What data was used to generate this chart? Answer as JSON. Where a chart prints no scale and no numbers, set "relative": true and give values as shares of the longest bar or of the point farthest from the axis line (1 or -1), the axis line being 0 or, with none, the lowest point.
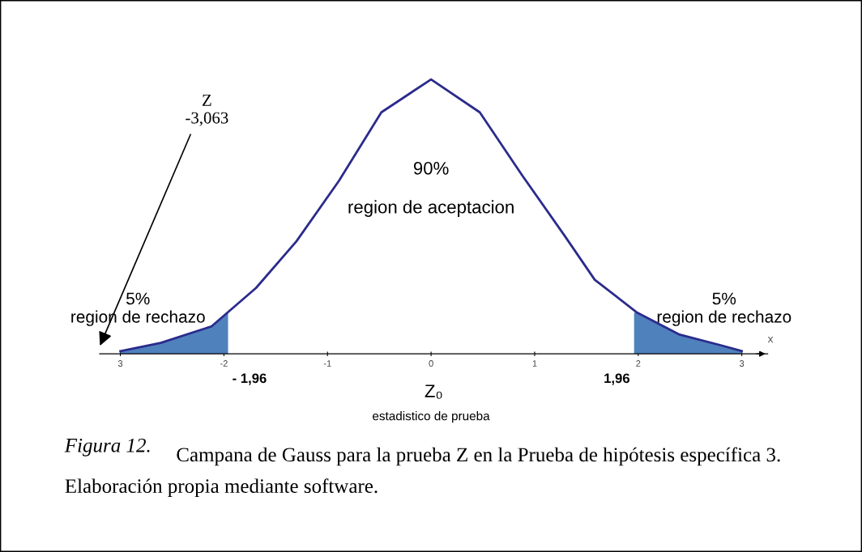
{
  "chart_data": {
    "type": "line",
    "relative": true,
    "x": [
      -3,
      -2.61,
      -2.12,
      -1.69,
      -1.3,
      -0.89,
      -0.48,
      0,
      0.47,
      0.88,
      1.29,
      1.58,
      1.99,
      2.4,
      2.81,
      3
    ],
    "series": [
      {
        "color": "#2b2b8c",
        "values": [
          0.01,
          0.04,
          0.1,
          0.24,
          0.41,
          0.63,
          0.88,
          1,
          0.88,
          0.65,
          0.43,
          0.27,
          0.15,
          0.07,
          0.03,
          0.01
        ]
      },
      {
        "type": "area",
        "color": "#4f81bd",
        "x": [
          -3,
          -2.61,
          -2.12,
          -1.96
        ],
        "values": [
          0.01,
          0.04,
          0.1,
          0.15
        ]
      },
      {
        "type": "area",
        "color": "#4f81bd",
        "x": [
          1.96,
          1.99,
          2.4,
          2.81,
          3
        ],
        "values": [
          0.15,
          0.15,
          0.07,
          0.03,
          0.01
        ]
      }
    ],
    "xlim": [
      -3.2,
      3.25
    ],
    "xticks": [
      {
        "value": -3,
        "label": "3"
      },
      -2,
      -1,
      0,
      1,
      2,
      3
    ],
    "xlabel": "Z₀",
    "annotations": [
      "Z\n-3,063",
      "90%\n\nregion de aceptacion",
      "5%\nregion de rechazo",
      "5%\nregion de rechazo",
      "x",
      "- 1,96",
      "1,96",
      "estadistico de prueba",
      "Figura 12.",
      "Campana de Gauss para la prueba Z en la Prueba de hipótesis específica 3. Elaboración propia mediante software."
    ],
    "grid": false,
    "legend": false
  }
}
